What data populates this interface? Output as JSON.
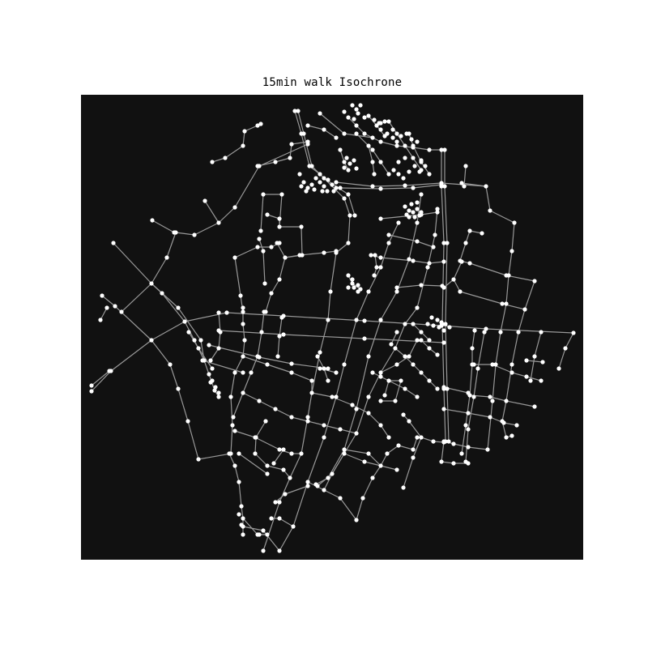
{
  "title": "15min walk Isochrone",
  "map": {
    "type": "street-network-isochrone",
    "background_color": "#111111",
    "edge_color": "#999999",
    "node_color": "#ffffff"
  }
}
